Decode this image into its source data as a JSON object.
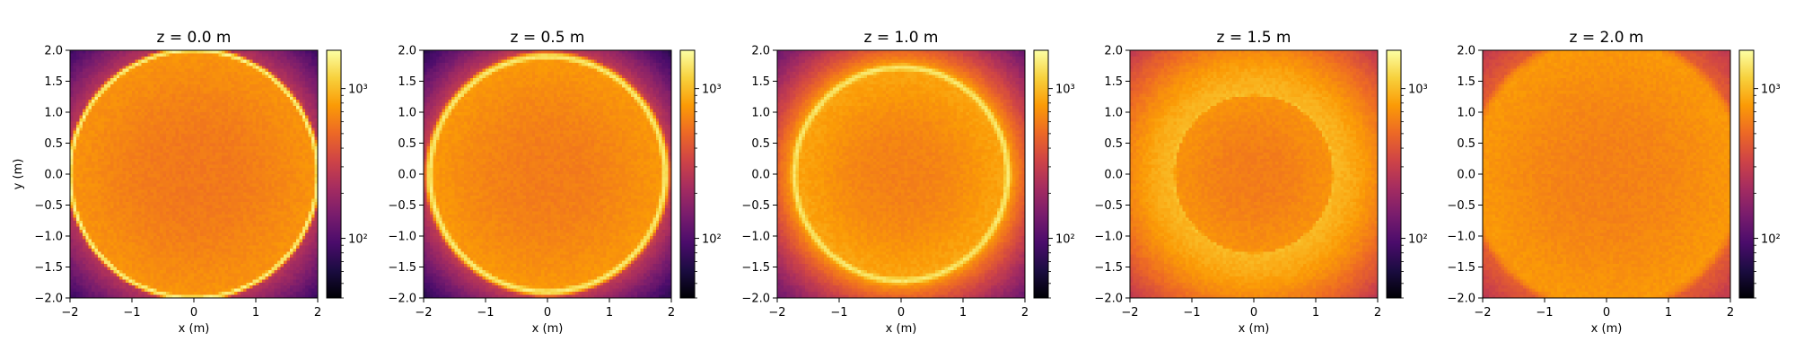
{
  "figure": {
    "colormap": "inferno",
    "cmap_stops": [
      "#000004",
      "#1b0c41",
      "#4a0c6b",
      "#781c6d",
      "#a52c60",
      "#cf4446",
      "#ed6925",
      "#fb9b06",
      "#f7d13d",
      "#fcffa4"
    ]
  },
  "chart_data": [
    {
      "type": "heatmap",
      "title": "z = 0.0 m",
      "xlabel": "x (m)",
      "ylabel": "y (m)",
      "xlim": [
        -2,
        2
      ],
      "ylim": [
        -2,
        2
      ],
      "xticks": [
        -2,
        -1,
        0,
        1,
        2
      ],
      "xtick_labels": [
        "−2",
        "−1",
        "0",
        "1",
        "2"
      ],
      "yticks": [
        -2.0,
        -1.5,
        -1.0,
        -0.5,
        0.0,
        0.5,
        1.0,
        1.5,
        2.0
      ],
      "ytick_labels": [
        "−2.0",
        "−1.5",
        "−1.0",
        "−0.5",
        "0.0",
        "0.5",
        "1.0",
        "1.5",
        "2.0"
      ],
      "colorbar": {
        "scale": "log",
        "range": [
          40,
          1800
        ],
        "ticks": [
          100,
          1000
        ],
        "tick_labels": [
          "10²",
          "10³"
        ]
      },
      "field": {
        "ring_radius": 2.0,
        "ring_width": 0.06,
        "ring_level": 0.97,
        "inner_center": 0.7,
        "inner_edge": 0.76,
        "outer_edge": 0.52,
        "outer_corner": 0.18,
        "outer_decay": 1.0
      }
    },
    {
      "type": "heatmap",
      "title": "z = 0.5 m",
      "xlabel": "x (m)",
      "ylabel": "",
      "xlim": [
        -2,
        2
      ],
      "ylim": [
        -2,
        2
      ],
      "xticks": [
        -2,
        -1,
        0,
        1,
        2
      ],
      "xtick_labels": [
        "−2",
        "−1",
        "0",
        "1",
        "2"
      ],
      "yticks": [
        -2.0,
        -1.5,
        -1.0,
        -0.5,
        0.0,
        0.5,
        1.0,
        1.5,
        2.0
      ],
      "ytick_labels": [
        "−2.0",
        "−1.5",
        "−1.0",
        "−0.5",
        "0.0",
        "0.5",
        "1.0",
        "1.5",
        "2.0"
      ],
      "colorbar": {
        "scale": "log",
        "range": [
          40,
          1800
        ],
        "ticks": [
          100,
          1000
        ],
        "tick_labels": [
          "10²",
          "10³"
        ]
      },
      "field": {
        "ring_radius": 1.9,
        "ring_width": 0.09,
        "ring_level": 0.95,
        "inner_center": 0.71,
        "inner_edge": 0.77,
        "outer_edge": 0.58,
        "outer_corner": 0.14,
        "outer_decay": 0.9
      }
    },
    {
      "type": "heatmap",
      "title": "z = 1.0 m",
      "xlabel": "x (m)",
      "ylabel": "",
      "xlim": [
        -2,
        2
      ],
      "ylim": [
        -2,
        2
      ],
      "xticks": [
        -2,
        -1,
        0,
        1,
        2
      ],
      "xtick_labels": [
        "−2",
        "−1",
        "0",
        "1",
        "2"
      ],
      "yticks": [
        -2.0,
        -1.5,
        -1.0,
        -0.5,
        0.0,
        0.5,
        1.0,
        1.5,
        2.0
      ],
      "ytick_labels": [
        "−2.0",
        "−1.5",
        "−1.0",
        "−0.5",
        "0.0",
        "0.5",
        "1.0",
        "1.5",
        "2.0"
      ],
      "colorbar": {
        "scale": "log",
        "range": [
          40,
          1800
        ],
        "ticks": [
          100,
          1000
        ],
        "tick_labels": [
          "10²",
          "10³"
        ]
      },
      "field": {
        "ring_radius": 1.72,
        "ring_width": 0.11,
        "ring_level": 0.94,
        "inner_center": 0.72,
        "inner_edge": 0.8,
        "outer_edge": 0.84,
        "outer_corner": 0.3,
        "outer_decay": 0.75
      }
    },
    {
      "type": "heatmap",
      "title": "z = 1.5 m",
      "xlabel": "x (m)",
      "ylabel": "",
      "xlim": [
        -2,
        2
      ],
      "ylim": [
        -2,
        2
      ],
      "xticks": [
        -2,
        -1,
        0,
        1,
        2
      ],
      "xtick_labels": [
        "−2",
        "−1",
        "0",
        "1",
        "2"
      ],
      "yticks": [
        -2.0,
        -1.5,
        -1.0,
        -0.5,
        0.0,
        0.5,
        1.0,
        1.5,
        2.0
      ],
      "ytick_labels": [
        "−2.0",
        "−1.5",
        "−1.0",
        "−0.5",
        "0.0",
        "0.5",
        "1.0",
        "1.5",
        "2.0"
      ],
      "colorbar": {
        "scale": "log",
        "range": [
          40,
          1800
        ],
        "ticks": [
          100,
          1000
        ],
        "tick_labels": [
          "10²",
          "10³"
        ]
      },
      "field": {
        "ring_radius": 1.3,
        "ring_width": 0.06,
        "ring_level": 0.86,
        "inner_center": 0.71,
        "inner_edge": 0.76,
        "outer_edge": 0.83,
        "outer_corner": 0.5,
        "outer_decay": 1.6
      }
    },
    {
      "type": "heatmap",
      "title": "z = 2.0 m",
      "xlabel": "x (m)",
      "ylabel": "",
      "xlim": [
        -2,
        2
      ],
      "ylim": [
        -2,
        2
      ],
      "xticks": [
        -2,
        -1,
        0,
        1,
        2
      ],
      "xtick_labels": [
        "−2",
        "−1",
        "0",
        "1",
        "2"
      ],
      "yticks": [
        -2.0,
        -1.5,
        -1.0,
        -0.5,
        0.0,
        0.5,
        1.0,
        1.5,
        2.0
      ],
      "ytick_labels": [
        "−2.0",
        "−1.5",
        "−1.0",
        "−0.5",
        "0.0",
        "0.5",
        "1.0",
        "1.5",
        "2.0"
      ],
      "colorbar": {
        "scale": "log",
        "range": [
          40,
          1800
        ],
        "ticks": [
          100,
          1000
        ],
        "tick_labels": [
          "10²",
          "10³"
        ]
      },
      "field": {
        "ring_radius": 2.1,
        "ring_width": 0.3,
        "ring_level": 0.77,
        "inner_center": 0.72,
        "inner_edge": 0.77,
        "outer_edge": 0.66,
        "outer_corner": 0.5,
        "outer_decay": 1.2
      }
    }
  ]
}
